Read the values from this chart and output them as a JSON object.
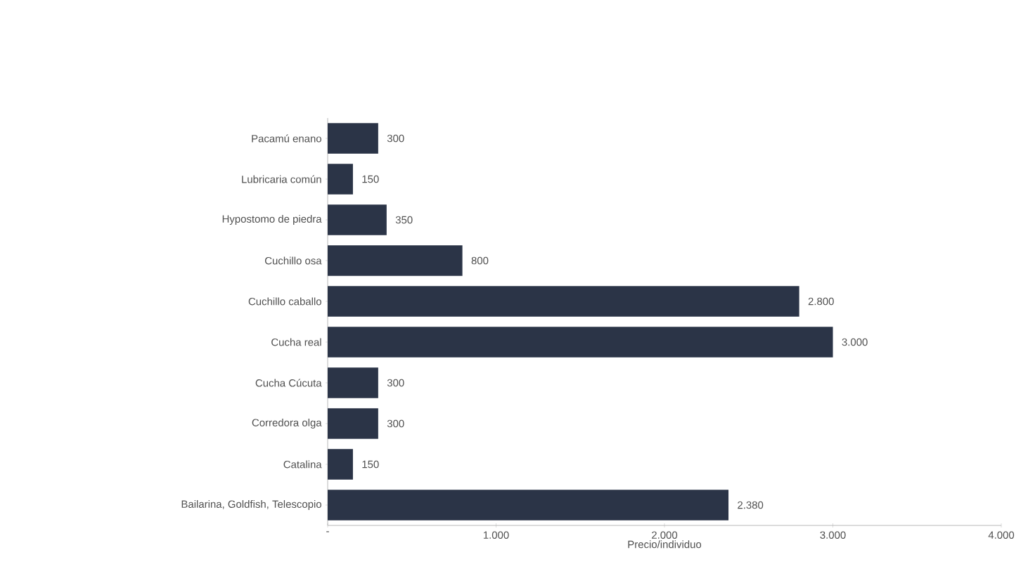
{
  "chart_data": {
    "type": "bar",
    "orientation": "horizontal",
    "xlabel": "Precio/individuo",
    "categories": [
      "Pacamú enano",
      "Lubricaria común",
      "Hypostomo de piedra",
      "Cuchillo osa",
      "Cuchillo caballo",
      "Cucha real",
      "Cucha Cúcuta",
      "Corredora olga",
      "Catalina",
      "Bailarina,  Goldfish, Telescopio"
    ],
    "values": [
      300,
      150,
      350,
      800,
      2800,
      3000,
      300,
      300,
      150,
      2380
    ],
    "value_labels": [
      "300",
      "150",
      "350",
      "800",
      "2.800",
      "3.000",
      "300",
      "300",
      "150",
      "2.380"
    ],
    "color": "#2b3447",
    "xlim": [
      0,
      4000
    ],
    "xticks": [
      {
        "value": 0,
        "label": "-"
      },
      {
        "value": 1000,
        "label": "1.000"
      },
      {
        "value": 2000,
        "label": "2.000"
      },
      {
        "value": 3000,
        "label": "3.000"
      },
      {
        "value": 4000,
        "label": "4.000"
      }
    ],
    "grid": false
  }
}
